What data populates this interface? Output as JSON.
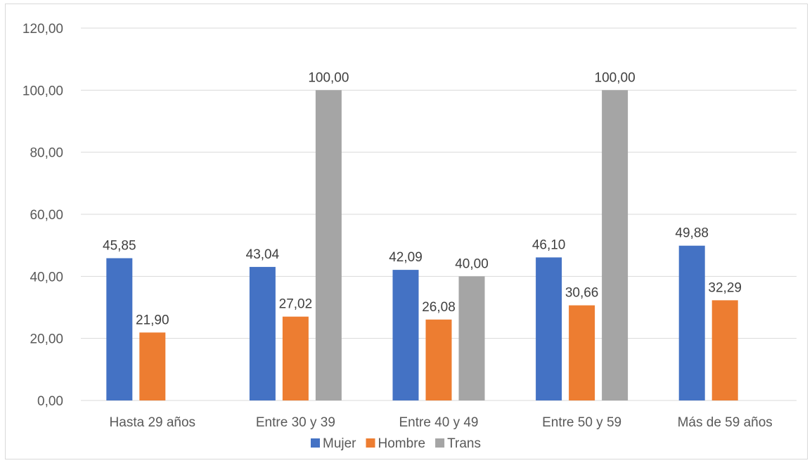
{
  "chart_data": {
    "type": "bar",
    "title": "",
    "xlabel": "",
    "ylabel": "",
    "ylim": [
      0,
      120
    ],
    "yticks": [
      0,
      20,
      40,
      60,
      80,
      100,
      120
    ],
    "ytick_labels": [
      "0,00",
      "20,00",
      "40,00",
      "60,00",
      "80,00",
      "100,00",
      "120,00"
    ],
    "categories": [
      "Hasta 29 años",
      "Entre 30 y 39",
      "Entre 40 y 49",
      "Entre 50 y 59",
      "Más de 59 años"
    ],
    "series": [
      {
        "name": "Mujer",
        "color": "#4472c4",
        "values": [
          45.85,
          43.04,
          42.09,
          46.1,
          49.88
        ],
        "labels": [
          "45,85",
          "43,04",
          "42,09",
          "46,10",
          "49,88"
        ]
      },
      {
        "name": "Hombre",
        "color": "#ed7d31",
        "values": [
          21.9,
          27.02,
          26.08,
          30.66,
          32.29
        ],
        "labels": [
          "21,90",
          "27,02",
          "26,08",
          "30,66",
          "32,29"
        ]
      },
      {
        "name": "Trans",
        "color": "#a5a5a5",
        "values": [
          null,
          100.0,
          40.0,
          100.0,
          null
        ],
        "labels": [
          null,
          "100,00",
          "40,00",
          "100,00",
          null
        ]
      }
    ],
    "grid": true,
    "legend": "bottom"
  }
}
